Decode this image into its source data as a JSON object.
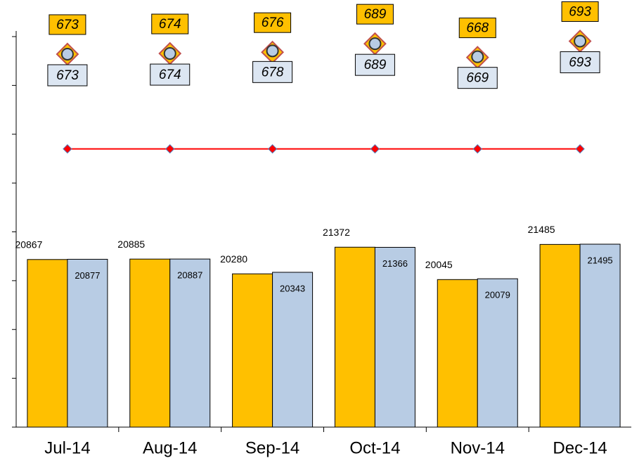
{
  "chart_data": {
    "type": "bar",
    "categories": [
      "Jul-14",
      "Aug-14",
      "Sep-14",
      "Oct-14",
      "Nov-14",
      "Dec-14"
    ],
    "ylim": [
      14000,
      30000
    ],
    "yticks": [
      14000,
      16000,
      18000,
      20000,
      22000,
      24000,
      26000,
      28000,
      30000
    ],
    "y2lim": [
      100,
      700
    ],
    "series": [
      {
        "type": "bar",
        "color": "#FFC000",
        "values": [
          20867,
          20885,
          20280,
          21372,
          20045,
          21485
        ]
      },
      {
        "type": "bar",
        "color": "#B8CCE4",
        "values": [
          20877,
          20887,
          20343,
          21366,
          20079,
          21495
        ]
      },
      {
        "type": "line",
        "color": "#FF0000",
        "values": [
          25400,
          25400,
          25400,
          25400,
          25400,
          25400
        ]
      },
      {
        "type": "diamond",
        "axis": "y2",
        "color": "#FFC000",
        "values": [
          673,
          674,
          676,
          689,
          668,
          693
        ]
      },
      {
        "type": "circle",
        "axis": "y2",
        "color": "#B8CCE4",
        "values": [
          673,
          674,
          678,
          689,
          669,
          693
        ]
      }
    ]
  }
}
